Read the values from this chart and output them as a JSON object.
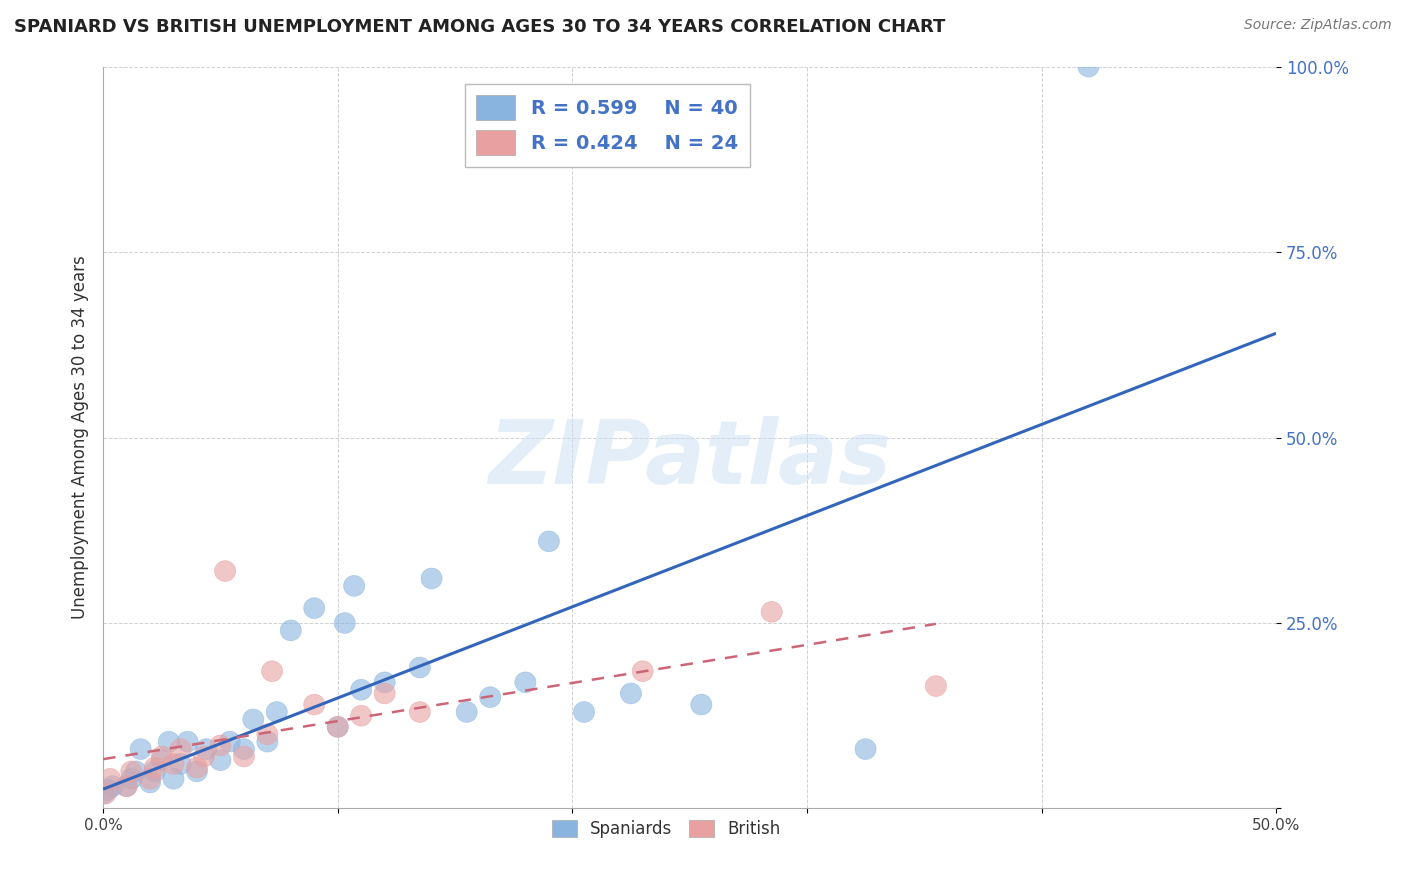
{
  "title": "SPANIARD VS BRITISH UNEMPLOYMENT AMONG AGES 30 TO 34 YEARS CORRELATION CHART",
  "source_text": "Source: ZipAtlas.com",
  "ylabel": "Unemployment Among Ages 30 to 34 years",
  "watermark": "ZIPatlas",
  "xlim": [
    0.0,
    0.5
  ],
  "ylim": [
    0.0,
    1.0
  ],
  "xticks": [
    0.0,
    0.1,
    0.2,
    0.3,
    0.4,
    0.5
  ],
  "xtick_labels_show": [
    "0.0%",
    "",
    "",
    "",
    "",
    "50.0%"
  ],
  "yticks": [
    0.0,
    0.25,
    0.5,
    0.75,
    1.0
  ],
  "ytick_labels": [
    "",
    "25.0%",
    "50.0%",
    "75.0%",
    "100.0%"
  ],
  "blue_color": "#8ab4e0",
  "pink_color": "#e8a0a0",
  "blue_line_color": "#3366bb",
  "pink_line_color": "#cc6677",
  "blue_R": 0.599,
  "blue_N": 40,
  "pink_R": 0.424,
  "pink_N": 24,
  "spaniards_x": [
    0.0,
    0.002,
    0.004,
    0.01,
    0.012,
    0.014,
    0.016,
    0.02,
    0.022,
    0.025,
    0.028,
    0.03,
    0.033,
    0.036,
    0.04,
    0.044,
    0.05,
    0.054,
    0.06,
    0.064,
    0.07,
    0.074,
    0.08,
    0.09,
    0.1,
    0.103,
    0.107,
    0.11,
    0.12,
    0.135,
    0.14,
    0.155,
    0.165,
    0.18,
    0.19,
    0.205,
    0.225,
    0.255,
    0.325,
    0.42
  ],
  "spaniards_y": [
    0.02,
    0.025,
    0.03,
    0.03,
    0.04,
    0.05,
    0.08,
    0.035,
    0.05,
    0.065,
    0.09,
    0.04,
    0.06,
    0.09,
    0.05,
    0.08,
    0.065,
    0.09,
    0.08,
    0.12,
    0.09,
    0.13,
    0.24,
    0.27,
    0.11,
    0.25,
    0.3,
    0.16,
    0.17,
    0.19,
    0.31,
    0.13,
    0.15,
    0.17,
    0.36,
    0.13,
    0.155,
    0.14,
    0.08,
    1.0
  ],
  "british_x": [
    0.001,
    0.003,
    0.01,
    0.012,
    0.02,
    0.022,
    0.025,
    0.03,
    0.033,
    0.04,
    0.043,
    0.05,
    0.052,
    0.06,
    0.07,
    0.072,
    0.09,
    0.1,
    0.11,
    0.12,
    0.135,
    0.23,
    0.285,
    0.355
  ],
  "british_y": [
    0.02,
    0.04,
    0.03,
    0.05,
    0.04,
    0.055,
    0.07,
    0.06,
    0.08,
    0.055,
    0.07,
    0.085,
    0.32,
    0.07,
    0.1,
    0.185,
    0.14,
    0.11,
    0.125,
    0.155,
    0.13,
    0.185,
    0.265,
    0.165
  ],
  "background_color": "#ffffff",
  "grid_color": "#cccccc",
  "label_color": "#4472c4",
  "title_color": "#222222"
}
